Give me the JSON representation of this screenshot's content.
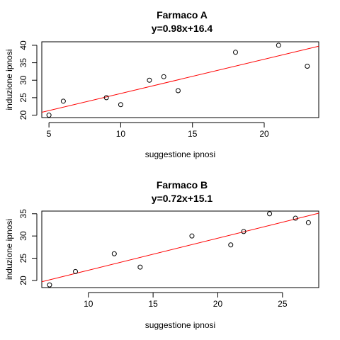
{
  "chart_data": [
    {
      "type": "scatter",
      "title": "Farmaco A",
      "subtitle": "y=0.98x+16.4",
      "xlabel": "suggestione ipnosi",
      "ylabel": "induzione ipnosi",
      "xlim": [
        4.5,
        23.8
      ],
      "ylim": [
        19.3,
        41.0
      ],
      "xticks": [
        5,
        10,
        15,
        20
      ],
      "yticks": [
        20,
        25,
        30,
        35,
        40
      ],
      "grid": false,
      "points_color": "#000000",
      "x": [
        5,
        6,
        9,
        10,
        12,
        13,
        14,
        18,
        21,
        23
      ],
      "y": [
        20,
        24,
        25,
        23,
        30,
        31,
        27,
        38,
        40,
        34
      ],
      "regression": {
        "slope": 0.98,
        "intercept": 16.4,
        "color": "#ff0000"
      }
    },
    {
      "type": "scatter",
      "title": "Farmaco B",
      "subtitle": "y=0.72x+15.1",
      "xlabel": "suggestione ipnosi",
      "ylabel": "induzione ipnosi",
      "xlim": [
        6.4,
        27.8
      ],
      "ylim": [
        18.4,
        35.6
      ],
      "xticks": [
        10,
        15,
        20,
        25
      ],
      "yticks": [
        20,
        25,
        30,
        35
      ],
      "grid": false,
      "points_color": "#000000",
      "x": [
        7,
        9,
        12,
        14,
        18,
        21,
        22,
        24,
        26,
        27
      ],
      "y": [
        19,
        22,
        26,
        23,
        30,
        28,
        31,
        35,
        34,
        33
      ],
      "regression": {
        "slope": 0.72,
        "intercept": 15.1,
        "color": "#ff0000"
      }
    }
  ]
}
